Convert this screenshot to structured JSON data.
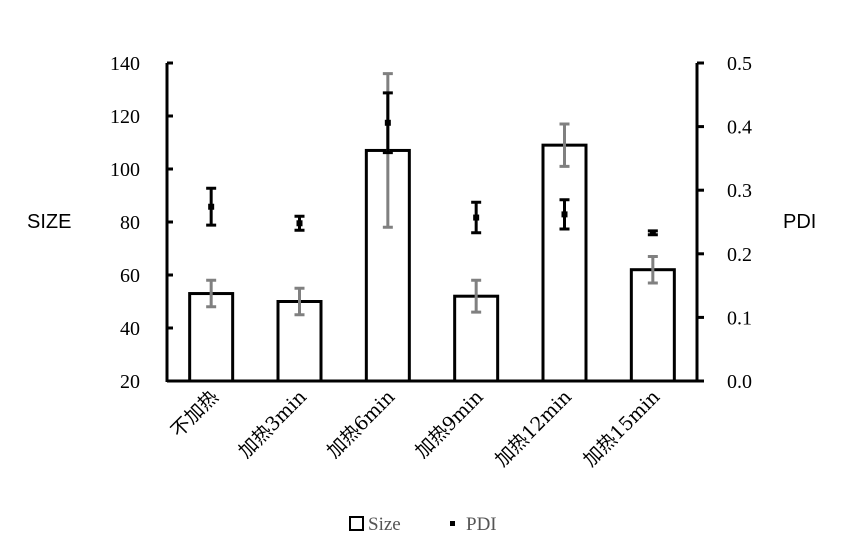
{
  "chart_data": {
    "type": "bar",
    "categories": [
      "不加热",
      "加热3min",
      "加热6min",
      "加热9min",
      "加热12min",
      "加热15min"
    ],
    "series": [
      {
        "name": "Size",
        "kind": "bar",
        "axis": "left",
        "values": [
          53,
          50,
          107,
          52,
          109,
          62
        ],
        "errors": [
          5,
          5,
          29,
          6,
          8,
          5
        ],
        "error_color": "#808080"
      },
      {
        "name": "PDI",
        "kind": "point",
        "axis": "right",
        "values": [
          0.274,
          0.248,
          0.406,
          0.257,
          0.262,
          0.233
        ],
        "errors": [
          0.029,
          0.011,
          0.047,
          0.024,
          0.023,
          0.003
        ],
        "error_color": "#000000"
      }
    ],
    "ylabel": "SIZE",
    "y2label": "PDI",
    "ylim": [
      20,
      140
    ],
    "yticks": [
      "20",
      "40",
      "60",
      "80",
      "100",
      "120",
      "140"
    ],
    "y2lim": [
      0,
      0.5
    ],
    "y2ticks": [
      "0.0",
      "0.1",
      "0.2",
      "0.3",
      "0.4",
      "0.5"
    ],
    "grid": false,
    "legend": "bottom"
  }
}
